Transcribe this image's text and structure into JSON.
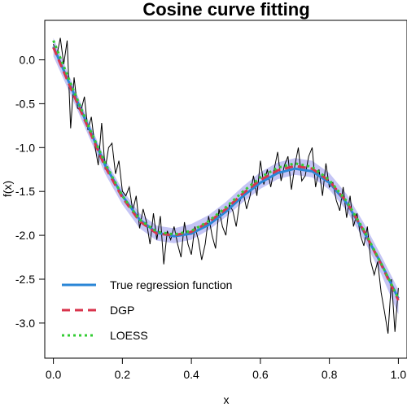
{
  "chart_data": {
    "type": "line",
    "title": "Cosine curve fitting",
    "xlabel": "x",
    "ylabel": "f(x)",
    "xlim": [
      -0.025,
      1.025
    ],
    "ylim": [
      -3.4,
      0.45
    ],
    "xticks": [
      0.0,
      0.2,
      0.4,
      0.6,
      0.8,
      1.0
    ],
    "xtick_labels": [
      "0.0",
      "0.2",
      "0.4",
      "0.6",
      "0.8",
      "1.0"
    ],
    "yticks": [
      0.0,
      -0.5,
      -1.0,
      -1.5,
      -2.0,
      -2.5,
      -3.0
    ],
    "ytick_labels": [
      "0.0",
      "-0.5",
      "-1.0",
      "-1.5",
      "-2.0",
      "-2.5",
      "-3.0"
    ],
    "legend_position": "bottom-left",
    "colors": {
      "band": "#c5c5f5",
      "true": "#2a86d6",
      "dgp": "#d9344c",
      "loess": "#33cc33",
      "observed": "#000000"
    },
    "series": [
      {
        "name": "True regression function",
        "style": "solid",
        "points": [
          [
            0.0,
            0.15
          ],
          [
            0.05,
            -0.3
          ],
          [
            0.1,
            -0.75
          ],
          [
            0.15,
            -1.2
          ],
          [
            0.2,
            -1.55
          ],
          [
            0.25,
            -1.82
          ],
          [
            0.3,
            -1.97
          ],
          [
            0.35,
            -2.01
          ],
          [
            0.4,
            -1.98
          ],
          [
            0.45,
            -1.88
          ],
          [
            0.5,
            -1.73
          ],
          [
            0.55,
            -1.55
          ],
          [
            0.6,
            -1.4
          ],
          [
            0.65,
            -1.29
          ],
          [
            0.7,
            -1.24
          ],
          [
            0.75,
            -1.27
          ],
          [
            0.8,
            -1.4
          ],
          [
            0.85,
            -1.63
          ],
          [
            0.9,
            -1.96
          ],
          [
            0.95,
            -2.32
          ],
          [
            1.0,
            -2.72
          ]
        ]
      },
      {
        "name": "DGP",
        "style": "dashed",
        "points": [
          [
            0.0,
            0.14
          ],
          [
            0.05,
            -0.32
          ],
          [
            0.1,
            -0.77
          ],
          [
            0.15,
            -1.22
          ],
          [
            0.2,
            -1.57
          ],
          [
            0.25,
            -1.84
          ],
          [
            0.3,
            -1.98
          ],
          [
            0.35,
            -2.0
          ],
          [
            0.4,
            -1.96
          ],
          [
            0.45,
            -1.85
          ],
          [
            0.5,
            -1.7
          ],
          [
            0.55,
            -1.52
          ],
          [
            0.6,
            -1.37
          ],
          [
            0.65,
            -1.26
          ],
          [
            0.7,
            -1.21
          ],
          [
            0.75,
            -1.24
          ],
          [
            0.8,
            -1.38
          ],
          [
            0.85,
            -1.62
          ],
          [
            0.9,
            -1.95
          ],
          [
            0.95,
            -2.33
          ],
          [
            1.0,
            -2.74
          ]
        ]
      },
      {
        "name": "LOESS",
        "style": "dotted",
        "points": [
          [
            0.0,
            0.22
          ],
          [
            0.05,
            -0.27
          ],
          [
            0.1,
            -0.74
          ],
          [
            0.15,
            -1.18
          ],
          [
            0.2,
            -1.55
          ],
          [
            0.25,
            -1.82
          ],
          [
            0.3,
            -1.96
          ],
          [
            0.35,
            -1.99
          ],
          [
            0.4,
            -1.95
          ],
          [
            0.45,
            -1.84
          ],
          [
            0.5,
            -1.68
          ],
          [
            0.55,
            -1.5
          ],
          [
            0.6,
            -1.34
          ],
          [
            0.65,
            -1.23
          ],
          [
            0.7,
            -1.18
          ],
          [
            0.75,
            -1.22
          ],
          [
            0.8,
            -1.37
          ],
          [
            0.85,
            -1.61
          ],
          [
            0.9,
            -1.94
          ],
          [
            0.95,
            -2.32
          ],
          [
            1.0,
            -2.72
          ]
        ]
      }
    ],
    "confidence_band": {
      "x": [
        0.0,
        0.05,
        0.1,
        0.15,
        0.2,
        0.25,
        0.3,
        0.35,
        0.4,
        0.45,
        0.5,
        0.55,
        0.6,
        0.65,
        0.7,
        0.75,
        0.8,
        0.85,
        0.9,
        0.95,
        1.0
      ],
      "lower": [
        0.04,
        -0.4,
        -0.85,
        -1.3,
        -1.65,
        -1.92,
        -2.06,
        -2.09,
        -2.05,
        -1.94,
        -1.79,
        -1.62,
        -1.47,
        -1.36,
        -1.31,
        -1.34,
        -1.48,
        -1.72,
        -2.05,
        -2.44,
        -2.9
      ],
      "upper": [
        0.25,
        -0.22,
        -0.68,
        -1.13,
        -1.48,
        -1.75,
        -1.89,
        -1.92,
        -1.87,
        -1.77,
        -1.62,
        -1.44,
        -1.28,
        -1.17,
        -1.12,
        -1.15,
        -1.29,
        -1.53,
        -1.86,
        -2.23,
        -2.62
      ]
    },
    "observed": {
      "x": [
        0.0,
        0.01,
        0.02,
        0.03,
        0.04,
        0.05,
        0.06,
        0.07,
        0.08,
        0.09,
        0.1,
        0.11,
        0.12,
        0.13,
        0.14,
        0.15,
        0.16,
        0.17,
        0.18,
        0.19,
        0.2,
        0.21,
        0.22,
        0.23,
        0.24,
        0.25,
        0.26,
        0.27,
        0.28,
        0.29,
        0.3,
        0.31,
        0.32,
        0.33,
        0.34,
        0.35,
        0.36,
        0.37,
        0.38,
        0.39,
        0.4,
        0.41,
        0.42,
        0.43,
        0.44,
        0.45,
        0.46,
        0.47,
        0.48,
        0.49,
        0.5,
        0.51,
        0.52,
        0.53,
        0.54,
        0.55,
        0.56,
        0.57,
        0.58,
        0.59,
        0.6,
        0.61,
        0.62,
        0.63,
        0.64,
        0.65,
        0.66,
        0.67,
        0.68,
        0.69,
        0.7,
        0.71,
        0.72,
        0.73,
        0.74,
        0.75,
        0.76,
        0.77,
        0.78,
        0.79,
        0.8,
        0.81,
        0.82,
        0.83,
        0.84,
        0.85,
        0.86,
        0.87,
        0.88,
        0.89,
        0.9,
        0.91,
        0.92,
        0.93,
        0.94,
        0.95,
        0.96,
        0.97,
        0.98,
        0.99,
        1.0
      ],
      "y": [
        0.18,
        0.05,
        0.25,
        -0.05,
        0.22,
        -0.78,
        -0.2,
        -0.55,
        -0.58,
        -0.42,
        -0.8,
        -0.65,
        -0.98,
        -1.2,
        -0.72,
        -1.25,
        -1.0,
        -0.95,
        -1.3,
        -1.15,
        -1.5,
        -1.55,
        -1.45,
        -1.72,
        -1.55,
        -1.92,
        -1.7,
        -1.85,
        -2.1,
        -1.75,
        -2.05,
        -1.78,
        -2.33,
        -1.95,
        -2.05,
        -1.9,
        -2.1,
        -2.25,
        -1.85,
        -2.1,
        -2.22,
        -1.9,
        -2.05,
        -2.28,
        -2.1,
        -1.78,
        -2.0,
        -2.15,
        -1.7,
        -1.9,
        -2.0,
        -1.65,
        -1.72,
        -1.9,
        -1.62,
        -1.5,
        -1.7,
        -1.55,
        -1.32,
        -1.55,
        -1.15,
        -1.42,
        -1.25,
        -1.45,
        -1.25,
        -1.05,
        -1.38,
        -1.2,
        -1.1,
        -1.48,
        -1.2,
        -1.0,
        -1.38,
        -1.32,
        -1.1,
        -1.0,
        -1.45,
        -1.25,
        -1.55,
        -1.18,
        -1.45,
        -1.4,
        -1.6,
        -1.72,
        -1.45,
        -1.8,
        -1.55,
        -1.9,
        -1.75,
        -2.0,
        -2.12,
        -1.9,
        -2.3,
        -2.45,
        -2.3,
        -2.65,
        -2.88,
        -3.12,
        -2.5,
        -3.1,
        -2.6
      ]
    }
  }
}
